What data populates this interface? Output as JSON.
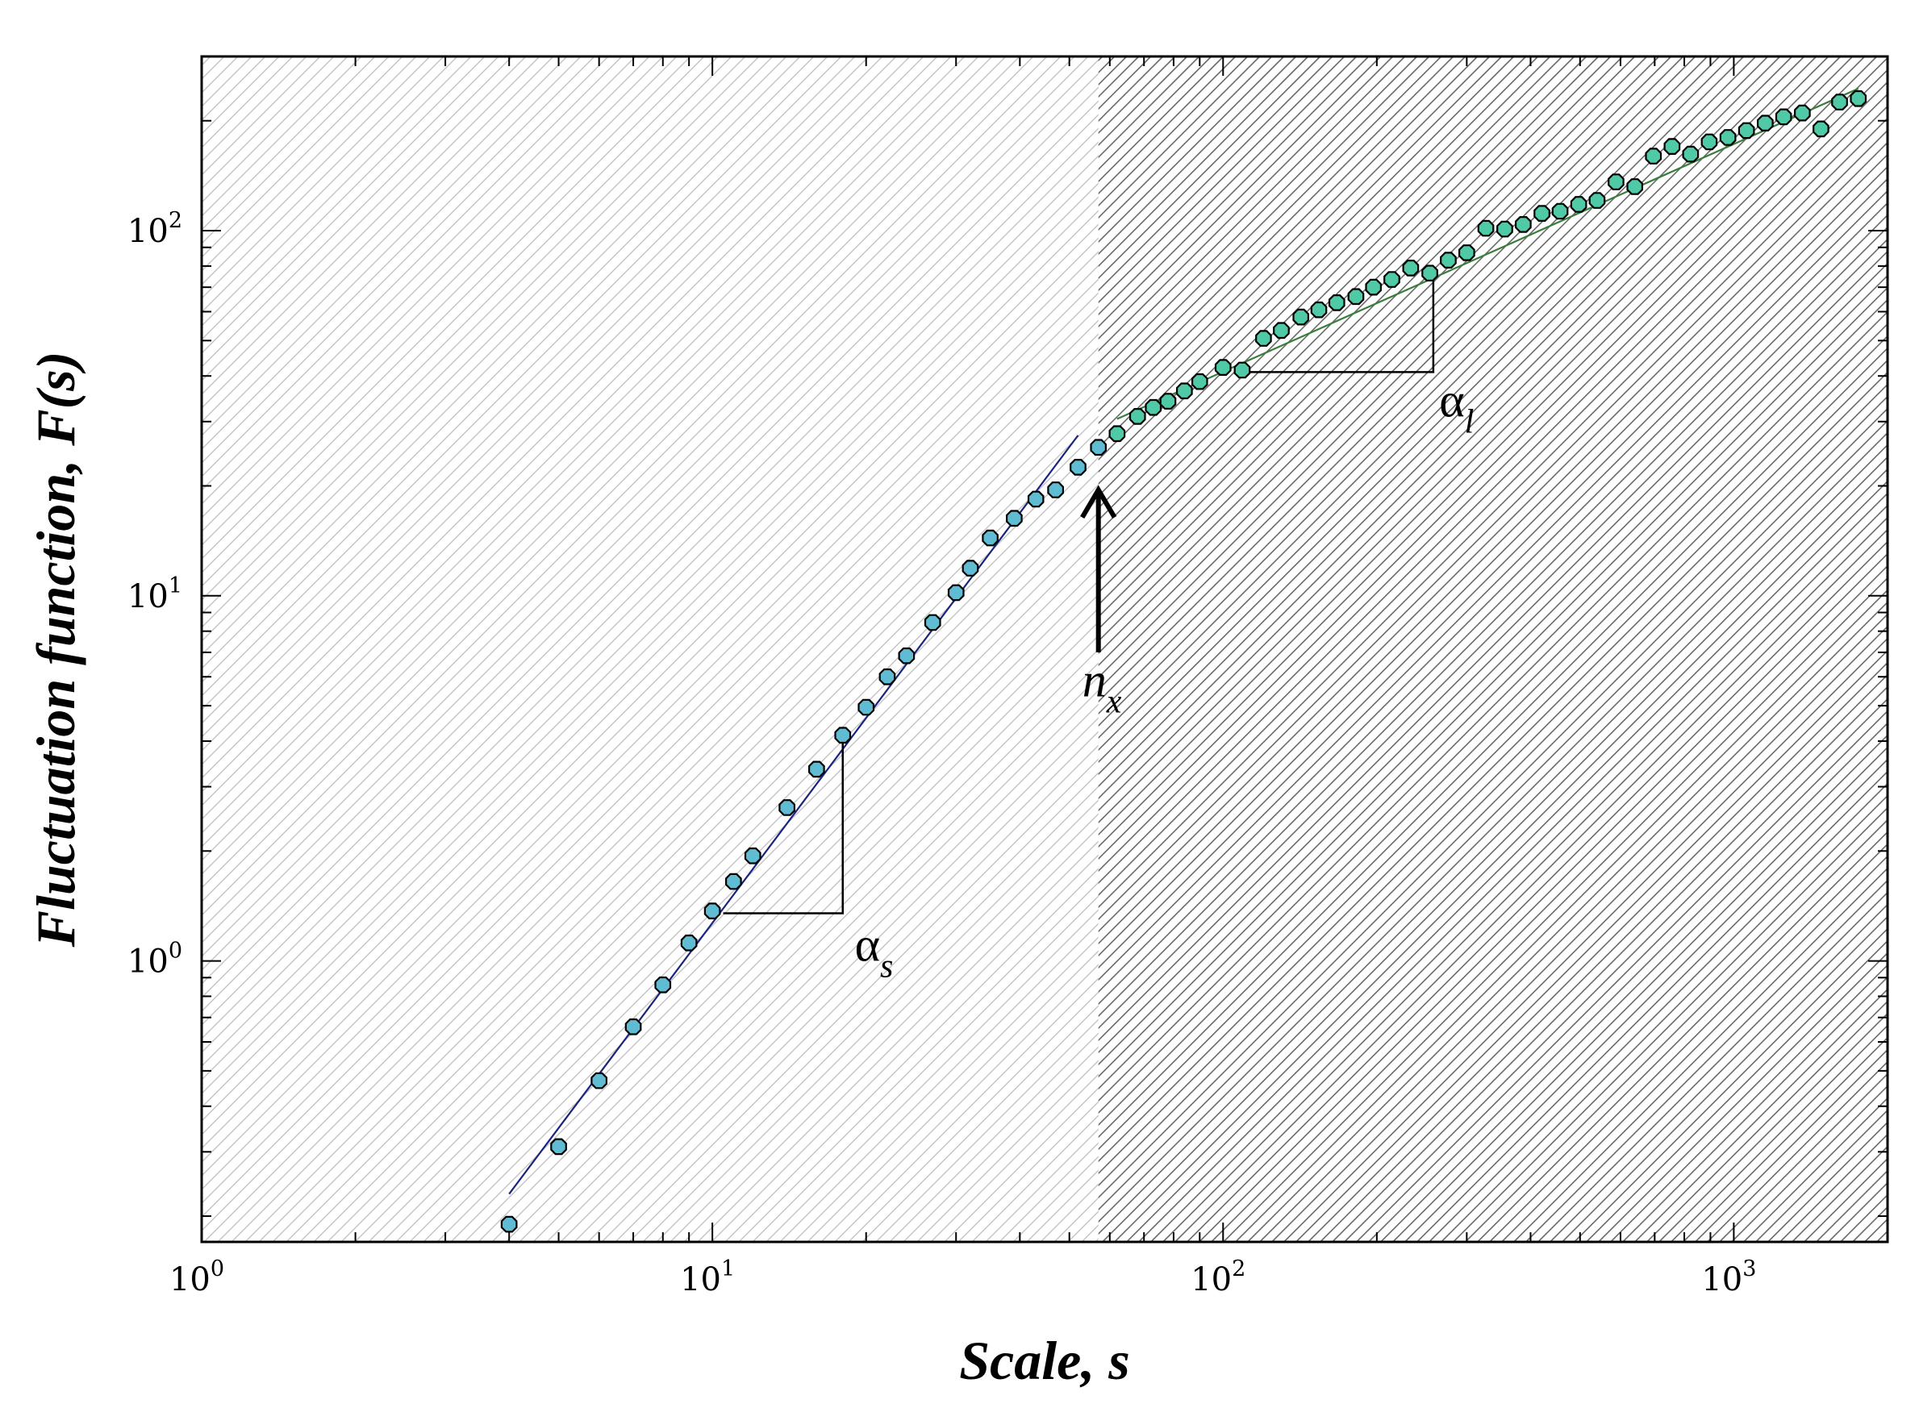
{
  "chart_data": {
    "type": "scatter",
    "title": "",
    "xlabel": "Scale, s",
    "ylabel": "Fluctuation function, F(s)",
    "xscale": "log",
    "yscale": "log",
    "xlim": [
      1,
      2000
    ],
    "ylim": [
      0.17,
      300
    ],
    "grid": false,
    "legend": "none",
    "x_ticks": [
      {
        "base": "10",
        "exp": "0",
        "value": 1
      },
      {
        "base": "10",
        "exp": "1",
        "value": 10
      },
      {
        "base": "10",
        "exp": "2",
        "value": 100
      },
      {
        "base": "10",
        "exp": "3",
        "value": 1000
      }
    ],
    "y_ticks": [
      {
        "base": "10",
        "exp": "0",
        "value": 1
      },
      {
        "base": "10",
        "exp": "1",
        "value": 10
      },
      {
        "base": "10",
        "exp": "2",
        "value": 100
      }
    ],
    "regions": [
      {
        "x_range": [
          1,
          57
        ],
        "pattern": "light-hatch"
      },
      {
        "x_range": [
          57,
          2000
        ],
        "pattern": "dense-hatch"
      }
    ],
    "series": [
      {
        "marker_color": "#5fbcd3",
        "x": [
          4,
          5,
          6,
          7,
          8,
          9,
          10,
          11,
          12,
          14,
          16,
          18,
          20,
          22,
          24,
          27,
          30,
          32,
          35,
          39,
          43,
          47,
          52,
          57
        ],
        "y": [
          0.19,
          0.31,
          0.47,
          0.66,
          0.86,
          1.12,
          1.37,
          1.65,
          1.94,
          2.63,
          3.35,
          4.15,
          4.95,
          6.0,
          6.85,
          8.45,
          10.2,
          11.9,
          14.4,
          16.3,
          18.4,
          19.5,
          22.5,
          25.5
        ]
      },
      {
        "marker_color": "#4fc9a6",
        "x": [
          62,
          68,
          73,
          78,
          84,
          90,
          100,
          109,
          120,
          130,
          142,
          154,
          167,
          182,
          197,
          214,
          233,
          254,
          276,
          300,
          327,
          356,
          387,
          421,
          457,
          497,
          540,
          588,
          640,
          696,
          757,
          823,
          895,
          974,
          1059,
          1152,
          1252,
          1362,
          1481,
          1611,
          1753
        ],
        "y": [
          27.8,
          31.0,
          32.8,
          34.1,
          36.4,
          38.6,
          42.2,
          41.5,
          50.7,
          53.3,
          58.0,
          60.7,
          63.5,
          66.0,
          70.0,
          73.5,
          79.0,
          76.5,
          83.0,
          87.0,
          101.5,
          101.0,
          104.0,
          111.5,
          113.0,
          118.0,
          121.0,
          136.0,
          132.0,
          160.0,
          170.0,
          162.0,
          175.0,
          180.0,
          188.0,
          197.0,
          205.0,
          210.0,
          190.0,
          225.0,
          230.0
        ]
      }
    ],
    "fits": [
      {
        "color": "#1a237e",
        "x": [
          4,
          52
        ],
        "y": [
          0.23,
          27.5
        ]
      },
      {
        "color": "#3a7d3a",
        "x": [
          62,
          1753
        ],
        "y": [
          30.5,
          245
        ]
      }
    ],
    "triangles": [
      {
        "x_corner": 18,
        "x_left": 10.5,
        "y_bottom": 1.35,
        "y_top": 4.0
      },
      {
        "x_corner": 258,
        "x_left": 105,
        "y_bottom": 41.0,
        "y_top": 78.0
      }
    ],
    "annotations": [
      {
        "id": "alpha_s",
        "symbol": "α",
        "subscript": "s",
        "x": 19,
        "y": 1.0
      },
      {
        "id": "alpha_l",
        "symbol": "α",
        "subscript": "l",
        "x": 265,
        "y": 31.0
      },
      {
        "id": "nx",
        "symbol": "n",
        "subscript": "x",
        "x": 53,
        "y": 5.3
      }
    ],
    "arrow": {
      "x": 57,
      "y_from": 7.0,
      "y_to": 19.5
    }
  }
}
